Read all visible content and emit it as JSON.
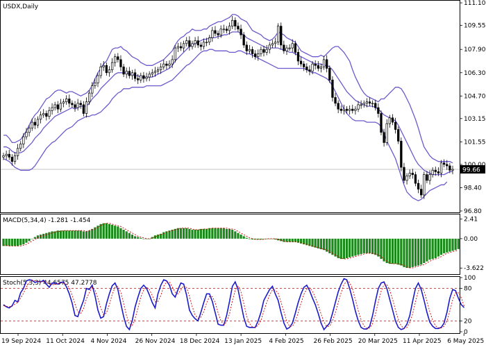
{
  "colors": {
    "candle": "#000000",
    "bollinger": "#6a5acd",
    "macd_hist": "#1a8a1a",
    "macd_signal": "#cc0000",
    "stoch_main": "#1a1acc",
    "stoch_signal": "#cc0000",
    "current_price_bg": "#000000"
  },
  "chart_data": [
    {
      "type": "candlestick",
      "title": "USDX,Daily",
      "ylim": [
        96.8,
        111.2
      ],
      "yticks": [
        "111.10",
        "109.55",
        "107.90",
        "106.30",
        "104.70",
        "103.15",
        "101.55",
        "100.00",
        "98.40",
        "96.80"
      ],
      "xticks": [
        "19 Sep 2024",
        "11 Oct 2024",
        "4 Nov 2024",
        "26 Nov 2024",
        "18 Dec 2024",
        "13 Jan 2025",
        "4 Feb 2025",
        "26 Feb 2025",
        "20 Mar 2025",
        "11 Apr 2025",
        "6 May 2025"
      ],
      "current_price": "99.66",
      "close": [
        100.6,
        100.7,
        100.5,
        100.2,
        100.6,
        101.1,
        101.4,
        101.9,
        102.2,
        102.5,
        102.9,
        102.7,
        103.1,
        103.4,
        103.5,
        103.3,
        103.7,
        103.9,
        104.1,
        103.8,
        104.2,
        104.3,
        104.5,
        104.2,
        104.1,
        103.9,
        104.2,
        104.1,
        103.5,
        104.3,
        104.9,
        105.4,
        105.6,
        106.1,
        106.7,
        106.8,
        106.3,
        106.5,
        107.0,
        107.4,
        107.2,
        106.7,
        106.2,
        106.4,
        106.1,
        106.3,
        105.9,
        105.8,
        106.1,
        105.9,
        106.0,
        106.2,
        106.3,
        106.4,
        106.5,
        106.7,
        106.9,
        106.8,
        106.9,
        107.2,
        108.0,
        108.1,
        108.0,
        108.3,
        108.5,
        108.1,
        108.3,
        108.5,
        108.2,
        108.1,
        108.4,
        108.4,
        108.7,
        109.2,
        109.0,
        108.9,
        109.3,
        109.3,
        109.2,
        109.5,
        109.9,
        109.5,
        109.3,
        108.9,
        108.2,
        107.8,
        107.9,
        107.6,
        107.4,
        107.6,
        107.9,
        107.7,
        107.9,
        108.2,
        108.3,
        108.4,
        109.5,
        108.2,
        107.8,
        108.0,
        108.0,
        108.3,
        107.7,
        107.1,
        106.9,
        106.7,
        106.5,
        106.4,
        106.9,
        106.8,
        106.6,
        106.7,
        107.2,
        106.6,
        105.8,
        104.6,
        104.2,
        103.8,
        103.7,
        103.8,
        103.7,
        103.8,
        103.7,
        103.8,
        104.1,
        104.1,
        104.2,
        104.3,
        104.2,
        104.2,
        103.9,
        103.5,
        102.2,
        101.5,
        102.8,
        103.2,
        102.9,
        102.4,
        101.6,
        99.8,
        98.9,
        99.2,
        99.4,
        99.3,
        98.7,
        98.3,
        97.9,
        99.3,
        98.9,
        99.3,
        99.6,
        99.5,
        99.4,
        100.1,
        100.0,
        99.9,
        99.6,
        99.66
      ],
      "bollinger_upper": [
        102.0,
        102.0,
        101.8,
        101.5,
        101.5,
        101.6,
        101.7,
        102.0,
        102.3,
        102.7,
        103.1,
        103.4,
        103.6,
        103.9,
        104.2,
        104.5,
        104.6,
        104.8,
        105.0,
        105.1,
        105.1,
        105.0,
        104.9,
        105.0,
        105.0,
        104.9,
        104.8,
        104.7,
        104.8,
        104.9,
        105.1,
        105.4,
        105.9,
        106.3,
        106.6,
        106.9,
        107.1,
        107.5,
        107.9,
        108.0,
        108.0,
        108.1,
        107.9,
        107.8,
        107.6,
        107.4,
        107.3,
        107.2,
        107.0,
        106.9,
        106.8,
        106.8,
        106.8,
        106.9,
        107.0,
        107.1,
        107.2,
        107.4,
        107.6,
        107.8,
        108.2,
        108.5,
        108.7,
        108.8,
        109.0,
        109.1,
        109.3,
        109.2,
        109.2,
        109.2,
        109.3,
        109.3,
        109.5,
        109.6,
        109.7,
        109.8,
        109.8,
        109.9,
        110.0,
        110.1,
        110.3,
        110.3,
        110.2,
        110.0,
        109.9,
        109.8,
        109.5,
        109.2,
        109.1,
        109.0,
        108.9,
        108.7,
        108.6,
        108.5,
        108.6,
        108.8,
        109.1,
        109.0,
        108.9,
        108.7,
        108.6,
        108.5,
        108.4,
        108.1,
        107.8,
        107.7,
        107.6,
        107.5,
        107.4,
        107.4,
        107.4,
        107.5,
        107.4,
        107.6,
        107.8,
        108.0,
        108.1,
        108.1,
        107.9,
        107.7,
        107.4,
        107.1,
        106.5,
        106.0,
        105.6,
        105.2,
        104.9,
        104.7,
        104.6,
        104.5,
        104.4,
        104.3,
        104.5,
        104.5,
        104.7,
        104.9,
        105.1,
        105.3,
        105.3,
        105.2,
        104.9,
        104.5,
        104.1,
        103.6,
        103.1,
        102.5,
        101.8,
        101.2,
        100.9,
        100.6,
        100.4,
        100.3,
        100.2,
        100.2,
        100.2,
        100.2,
        100.2,
        100.1
      ],
      "bollinger_mid": [
        101.2,
        101.2,
        101.1,
        100.9,
        100.8,
        100.8,
        100.8,
        100.9,
        101.1,
        101.3,
        101.5,
        101.8,
        102.0,
        102.2,
        102.5,
        102.7,
        102.9,
        103.1,
        103.3,
        103.4,
        103.5,
        103.6,
        103.7,
        103.8,
        103.9,
        103.8,
        103.9,
        104.0,
        104.0,
        104.0,
        104.2,
        104.5,
        104.7,
        104.9,
        105.2,
        105.4,
        105.6,
        105.8,
        106.0,
        106.2,
        106.3,
        106.3,
        106.3,
        106.3,
        106.2,
        106.2,
        106.1,
        106.1,
        106.0,
        106.0,
        106.0,
        106.0,
        106.0,
        106.1,
        106.2,
        106.3,
        106.4,
        106.5,
        106.6,
        106.8,
        107.1,
        107.3,
        107.5,
        107.7,
        107.9,
        108.1,
        108.2,
        108.3,
        108.4,
        108.5,
        108.6,
        108.6,
        108.7,
        108.7,
        108.7,
        108.8,
        108.8,
        108.9,
        108.9,
        109.0,
        109.1,
        109.1,
        109.1,
        109.0,
        108.9,
        108.7,
        108.6,
        108.5,
        108.4,
        108.3,
        108.2,
        108.1,
        108.0,
        108.0,
        108.0,
        108.0,
        108.0,
        107.9,
        107.9,
        107.8,
        107.7,
        107.7,
        107.6,
        107.5,
        107.4,
        107.3,
        107.2,
        107.1,
        107.0,
        106.9,
        106.9,
        106.9,
        106.8,
        106.8,
        106.7,
        106.5,
        106.2,
        105.9,
        105.6,
        105.3,
        105.0,
        104.8,
        104.6,
        104.4,
        104.3,
        104.2,
        104.1,
        104.0,
        104.0,
        104.0,
        103.9,
        103.8,
        103.6,
        103.4,
        103.3,
        103.2,
        103.1,
        103.0,
        102.7,
        102.3,
        101.9,
        101.5,
        101.1,
        100.7,
        100.3,
        100.0,
        99.8,
        99.6,
        99.5,
        99.4,
        99.3,
        99.3,
        99.3,
        99.3,
        99.3,
        99.4,
        99.5,
        99.5
      ],
      "bollinger_lower": [
        100.4,
        100.3,
        100.2,
        100.0,
        99.8,
        99.7,
        99.6,
        99.6,
        99.6,
        99.6,
        99.7,
        99.9,
        100.2,
        100.5,
        100.8,
        101.1,
        101.3,
        101.5,
        101.6,
        101.8,
        102.0,
        102.2,
        102.4,
        102.5,
        102.6,
        102.8,
        103.0,
        103.1,
        103.2,
        103.3,
        103.3,
        103.4,
        103.4,
        103.5,
        103.6,
        103.8,
        104.0,
        104.2,
        104.5,
        104.7,
        104.9,
        105.0,
        105.2,
        105.2,
        105.2,
        105.3,
        105.3,
        105.3,
        105.3,
        105.3,
        105.4,
        105.4,
        105.4,
        105.4,
        105.4,
        105.4,
        105.5,
        105.6,
        105.7,
        105.8,
        106.0,
        106.2,
        106.4,
        106.6,
        106.8,
        106.9,
        107.1,
        107.3,
        107.5,
        107.7,
        107.8,
        107.8,
        107.9,
        107.9,
        107.8,
        107.8,
        107.8,
        107.8,
        107.8,
        107.7,
        107.7,
        107.7,
        107.8,
        107.8,
        107.7,
        107.6,
        107.6,
        107.5,
        107.4,
        107.3,
        107.2,
        107.1,
        107.0,
        106.9,
        106.8,
        106.7,
        106.6,
        106.6,
        106.6,
        106.6,
        106.6,
        106.6,
        106.6,
        106.6,
        106.6,
        106.6,
        106.5,
        106.4,
        106.3,
        106.3,
        106.2,
        106.1,
        106.0,
        105.9,
        105.7,
        105.4,
        105.0,
        104.6,
        104.2,
        103.8,
        103.5,
        103.3,
        103.1,
        103.0,
        103.0,
        103.0,
        103.0,
        102.9,
        102.9,
        102.9,
        102.9,
        102.8,
        102.6,
        102.1,
        101.6,
        101.2,
        100.8,
        100.4,
        99.8,
        99.2,
        98.6,
        98.1,
        97.9,
        97.7,
        97.6,
        97.5,
        97.6,
        97.8,
        98.0,
        98.2,
        98.3,
        98.4,
        98.5,
        98.6,
        98.6,
        98.8
      ]
    },
    {
      "type": "bar",
      "title": "MACD(5,34,4) -1.281 -1.454",
      "ylim": [
        -4.2,
        2.9
      ],
      "yticks": [
        "2.41",
        "0.00",
        "-3.622"
      ],
      "values": [
        -0.9,
        -0.9,
        -0.9,
        -0.9,
        -0.9,
        -0.9,
        -0.8,
        -0.7,
        -0.5,
        -0.3,
        0.0,
        0.2,
        0.4,
        0.5,
        0.6,
        0.7,
        0.8,
        0.9,
        0.9,
        1.0,
        1.0,
        1.0,
        1.0,
        1.0,
        1.0,
        1.0,
        1.0,
        1.0,
        0.9,
        0.9,
        1.0,
        1.2,
        1.4,
        1.6,
        1.8,
        1.9,
        1.9,
        1.8,
        1.7,
        1.6,
        1.5,
        1.3,
        1.1,
        0.9,
        0.7,
        0.5,
        0.3,
        0.2,
        0.1,
        0.0,
        0.0,
        0.0,
        0.2,
        0.4,
        0.5,
        0.6,
        0.8,
        0.9,
        1.0,
        1.1,
        1.2,
        1.3,
        1.3,
        1.3,
        1.3,
        1.2,
        1.1,
        1.1,
        1.1,
        1.2,
        1.2,
        1.2,
        1.3,
        1.3,
        1.3,
        1.3,
        1.3,
        1.3,
        1.2,
        1.2,
        1.1,
        0.9,
        0.7,
        0.5,
        0.3,
        0.1,
        0.0,
        -0.1,
        -0.1,
        -0.1,
        -0.1,
        0.0,
        0.0,
        0.0,
        0.0,
        -0.1,
        -0.2,
        -0.3,
        -0.4,
        -0.4,
        -0.4,
        -0.4,
        -0.4,
        -0.5,
        -0.6,
        -0.7,
        -0.8,
        -0.9,
        -1.0,
        -1.1,
        -1.2,
        -1.3,
        -1.4,
        -1.6,
        -1.8,
        -2.0,
        -2.2,
        -2.4,
        -2.5,
        -2.5,
        -2.4,
        -2.3,
        -2.2,
        -2.1,
        -2.0,
        -1.9,
        -1.8,
        -1.8,
        -1.8,
        -1.9,
        -2.0,
        -2.2,
        -2.5,
        -2.8,
        -3.0,
        -3.1,
        -3.1,
        -3.1,
        -3.2,
        -3.3,
        -3.5,
        -3.6,
        -3.6,
        -3.5,
        -3.4,
        -3.3,
        -3.2,
        -3.0,
        -2.8,
        -2.6,
        -2.5,
        -2.4,
        -2.2,
        -2.0,
        -1.8,
        -1.7,
        -1.6,
        -1.5,
        -1.4,
        -1.281
      ],
      "signal": [
        -0.8,
        -0.8,
        -0.9,
        -0.9,
        -0.9,
        -0.9,
        -0.9,
        -0.8,
        -0.7,
        -0.5,
        -0.3,
        -0.1,
        0.1,
        0.3,
        0.4,
        0.5,
        0.6,
        0.7,
        0.8,
        0.9,
        0.9,
        1.0,
        1.0,
        1.0,
        1.0,
        1.0,
        1.0,
        1.0,
        1.0,
        0.9,
        1.0,
        1.1,
        1.2,
        1.4,
        1.6,
        1.8,
        1.9,
        1.9,
        1.8,
        1.7,
        1.6,
        1.5,
        1.3,
        1.1,
        0.9,
        0.7,
        0.5,
        0.3,
        0.2,
        0.1,
        0.0,
        0.0,
        0.1,
        0.2,
        0.4,
        0.5,
        0.6,
        0.8,
        0.9,
        1.0,
        1.1,
        1.2,
        1.3,
        1.3,
        1.3,
        1.3,
        1.2,
        1.1,
        1.1,
        1.1,
        1.2,
        1.2,
        1.2,
        1.3,
        1.3,
        1.3,
        1.3,
        1.3,
        1.3,
        1.2,
        1.2,
        1.1,
        0.9,
        0.7,
        0.5,
        0.3,
        0.1,
        0.0,
        -0.1,
        -0.1,
        -0.1,
        -0.1,
        0.0,
        0.0,
        0.0,
        0.0,
        -0.1,
        -0.2,
        -0.3,
        -0.4,
        -0.4,
        -0.4,
        -0.4,
        -0.4,
        -0.5,
        -0.6,
        -0.7,
        -0.8,
        -0.9,
        -1.0,
        -1.1,
        -1.2,
        -1.3,
        -1.4,
        -1.6,
        -1.8,
        -2.0,
        -2.2,
        -2.4,
        -2.5,
        -2.5,
        -2.4,
        -2.3,
        -2.2,
        -2.1,
        -2.0,
        -1.9,
        -1.8,
        -1.8,
        -1.8,
        -1.9,
        -2.0,
        -2.2,
        -2.5,
        -2.8,
        -3.0,
        -3.1,
        -3.1,
        -3.1,
        -3.2,
        -3.3,
        -3.5,
        -3.6,
        -3.6,
        -3.5,
        -3.4,
        -3.3,
        -3.2,
        -3.0,
        -2.8,
        -2.6,
        -2.5,
        -2.4,
        -2.2,
        -2.0,
        -1.8,
        -1.7,
        -1.6,
        -1.5,
        -1.454
      ]
    },
    {
      "type": "line",
      "title": "Stoch(5,3,3) 44.6575 47.2778",
      "ylim": [
        0,
        100
      ],
      "yticks": [
        "100",
        "80",
        "20",
        "0"
      ],
      "levels": [
        80,
        20
      ],
      "main": [
        50,
        46,
        44,
        48,
        58,
        55,
        72,
        80,
        94,
        96,
        95,
        91,
        93,
        92,
        95,
        88,
        82,
        90,
        90,
        88,
        91,
        92,
        83,
        70,
        53,
        30,
        28,
        44,
        58,
        80,
        78,
        86,
        66,
        40,
        25,
        28,
        52,
        70,
        85,
        90,
        78,
        52,
        28,
        10,
        4,
        20,
        46,
        64,
        80,
        86,
        80,
        68,
        54,
        44,
        70,
        86,
        96,
        94,
        86,
        70,
        64,
        78,
        90,
        88,
        68,
        40,
        30,
        24,
        20,
        36,
        54,
        70,
        70,
        56,
        35,
        14,
        12,
        12,
        30,
        56,
        84,
        92,
        78,
        52,
        26,
        10,
        8,
        8,
        8,
        20,
        36,
        58,
        68,
        78,
        84,
        70,
        58,
        36,
        16,
        5,
        8,
        16,
        34,
        54,
        70,
        82,
        86,
        76,
        62,
        50,
        34,
        16,
        4,
        10,
        16,
        34,
        54,
        74,
        88,
        98,
        96,
        80,
        60,
        38,
        20,
        8,
        5,
        5,
        10,
        30,
        56,
        80,
        90,
        92,
        80,
        60,
        40,
        20,
        8,
        4,
        6,
        14,
        30,
        56,
        80,
        90,
        78,
        58,
        36,
        18,
        10,
        6,
        6,
        8,
        16,
        36,
        62,
        78,
        76,
        62,
        50,
        44.6575
      ],
      "signal": [
        48,
        47,
        46,
        47,
        51,
        54,
        62,
        71,
        83,
        91,
        95,
        94,
        93,
        92,
        93,
        92,
        88,
        87,
        87,
        89,
        90,
        90,
        88,
        81,
        68,
        51,
        37,
        34,
        43,
        61,
        72,
        82,
        77,
        62,
        44,
        31,
        35,
        50,
        69,
        82,
        84,
        73,
        52,
        30,
        14,
        11,
        24,
        44,
        64,
        77,
        82,
        78,
        67,
        55,
        56,
        67,
        84,
        92,
        92,
        83,
        73,
        70,
        77,
        85,
        82,
        65,
        46,
        31,
        25,
        27,
        37,
        53,
        65,
        65,
        54,
        35,
        20,
        13,
        18,
        33,
        57,
        77,
        85,
        74,
        52,
        29,
        15,
        9,
        8,
        12,
        21,
        38,
        54,
        68,
        77,
        77,
        71,
        55,
        37,
        19,
        10,
        10,
        19,
        35,
        53,
        69,
        79,
        81,
        75,
        63,
        49,
        33,
        18,
        10,
        10,
        20,
        35,
        54,
        72,
        87,
        94,
        91,
        79,
        59,
        39,
        22,
        11,
        6,
        7,
        15,
        32,
        55,
        75,
        87,
        87,
        77,
        60,
        40,
        23,
        11,
        6,
        8,
        17,
        33,
        55,
        75,
        83,
        75,
        57,
        37,
        21,
        11,
        7,
        7,
        10,
        20,
        38,
        59,
        72,
        72,
        63,
        47.2778
      ]
    }
  ]
}
